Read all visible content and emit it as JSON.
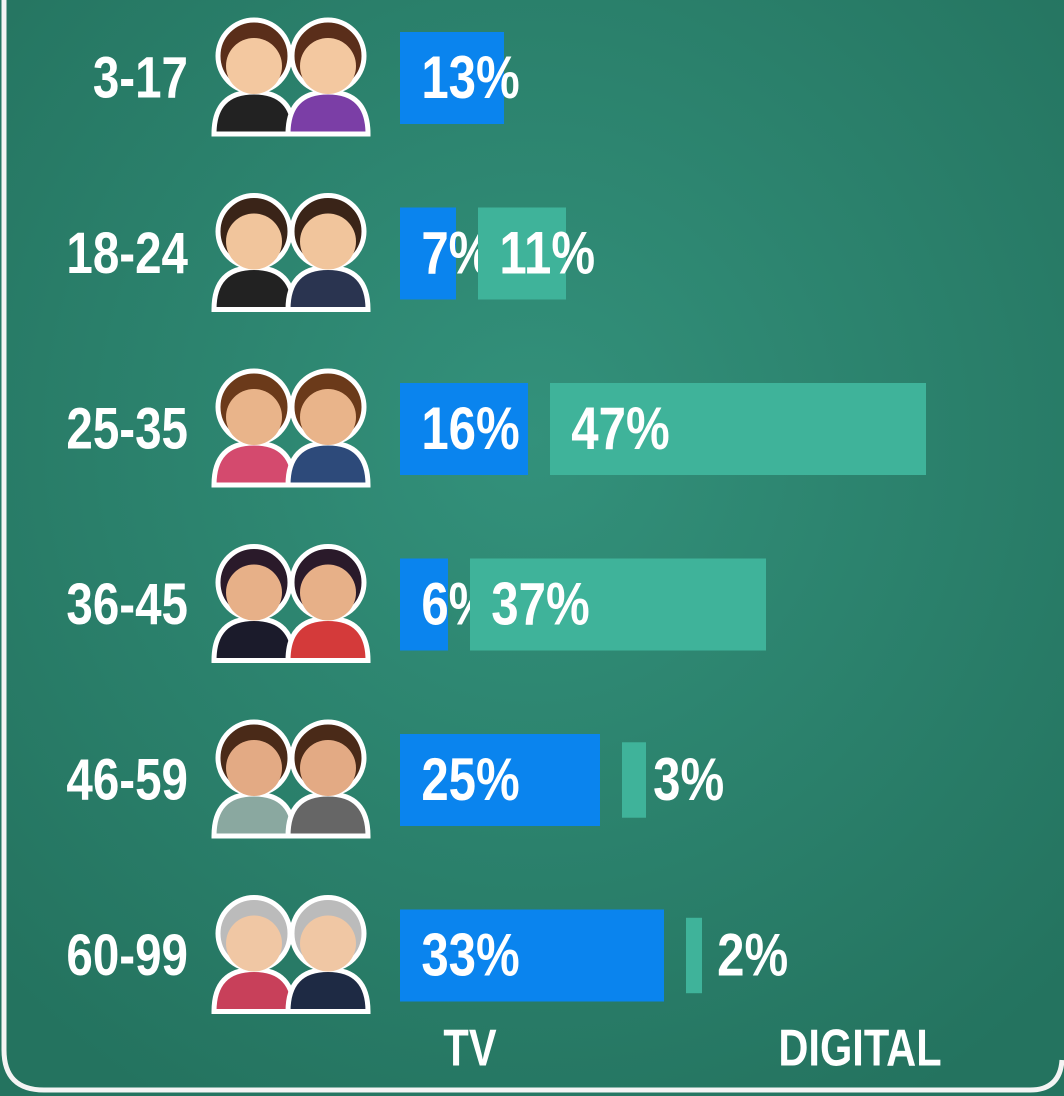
{
  "chart_data": {
    "type": "bar",
    "orientation": "horizontal",
    "categories": [
      "3-17",
      "18-24",
      "25-35",
      "36-45",
      "46-59",
      "60-99"
    ],
    "series": [
      {
        "name": "TV",
        "color": "#0a84ee",
        "values": [
          13,
          7,
          16,
          6,
          25,
          33
        ],
        "value_labels": [
          "13%",
          "7%",
          "16%",
          "6%",
          "25%",
          "33%"
        ]
      },
      {
        "name": "DIGITAL",
        "color": "#3fb39a",
        "values": [
          null,
          11,
          47,
          37,
          3,
          2
        ],
        "value_labels": [
          null,
          "11%",
          "47%",
          "37%",
          "3%",
          "2%"
        ]
      }
    ]
  }
}
